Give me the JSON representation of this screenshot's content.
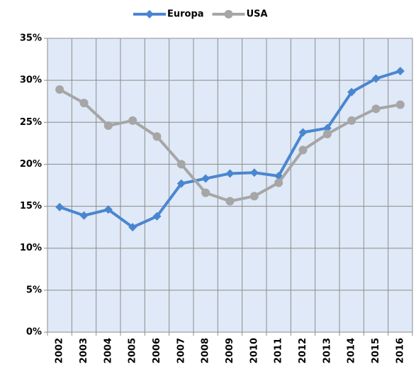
{
  "chart_data": {
    "type": "line",
    "categories": [
      "2002",
      "2003",
      "2004",
      "2005",
      "2006",
      "2007",
      "2008",
      "2009",
      "2010",
      "2011",
      "2012",
      "2013",
      "2014",
      "2015",
      "2016"
    ],
    "series": [
      {
        "name": "Europa",
        "color": "#4a86d0",
        "marker": "diamond",
        "values": [
          14.9,
          13.9,
          14.6,
          12.5,
          13.8,
          17.7,
          18.3,
          18.9,
          19.0,
          18.6,
          23.8,
          24.3,
          28.6,
          30.2,
          31.1
        ]
      },
      {
        "name": "USA",
        "color": "#a6a6a6",
        "marker": "circle",
        "values": [
          28.9,
          27.3,
          24.6,
          25.2,
          23.3,
          20.0,
          16.6,
          15.6,
          16.2,
          17.8,
          21.7,
          23.6,
          25.2,
          26.6,
          27.1
        ]
      }
    ],
    "ylim": [
      0,
      35
    ],
    "yticks": [
      {
        "value": 0,
        "label": "0%"
      },
      {
        "value": 5,
        "label": "5%"
      },
      {
        "value": 10,
        "label": "10%"
      },
      {
        "value": 15,
        "label": "15%"
      },
      {
        "value": 20,
        "label": "20%"
      },
      {
        "value": 25,
        "label": "25%"
      },
      {
        "value": 30,
        "label": "30%"
      },
      {
        "value": 35,
        "label": "35%"
      }
    ],
    "grid": true,
    "legend": "top",
    "background": "#dfe9f7"
  }
}
